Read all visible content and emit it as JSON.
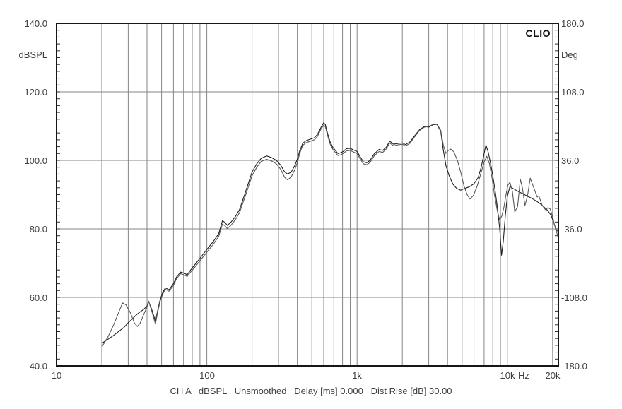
{
  "colors": {
    "grid": "#868686",
    "border": "#161616",
    "tick": "#2f2f2f",
    "trace1": "#1f1f1f",
    "trace2": "#585858",
    "label": "#3f3f3f"
  },
  "chart_data": {
    "type": "line",
    "title": "CLIO",
    "caption": "CH A   dBSPL   Unsmoothed   Delay [ms] 0.000   Dist Rise [dB] 30.00",
    "x_axis": {
      "unit": "Hz",
      "scale": "log",
      "min": 10,
      "max": 21800,
      "gridlines": [
        20,
        30,
        40,
        50,
        60,
        70,
        80,
        90,
        100,
        200,
        300,
        400,
        500,
        600,
        700,
        800,
        900,
        1000,
        2000,
        3000,
        4000,
        5000,
        6000,
        7000,
        8000,
        9000,
        10000,
        20000
      ],
      "tick_labels": [
        {
          "label": "10",
          "f": 10
        },
        {
          "label": "100",
          "f": 100
        },
        {
          "label": "1k",
          "f": 1000
        },
        {
          "label": "10k",
          "f": 10000
        },
        {
          "label": "Hz",
          "f": 12800
        },
        {
          "label": "20k",
          "f": 20000
        }
      ]
    },
    "y_axis_left": {
      "label": "dBSPL",
      "min": 40,
      "max": 140,
      "gridlines": [
        60,
        80,
        100,
        120
      ],
      "minor_tick_step": 2,
      "tick_labels": [
        {
          "label": "140.0",
          "v": 140
        },
        {
          "label": "120.0",
          "v": 120
        },
        {
          "label": "100.0",
          "v": 100
        },
        {
          "label": "80.0",
          "v": 80
        },
        {
          "label": "60.0",
          "v": 60
        },
        {
          "label": "40.0",
          "v": 40
        }
      ]
    },
    "y_axis_right": {
      "label": "Deg",
      "min": -180,
      "max": 180,
      "tick_labels": [
        {
          "label": "180.0",
          "v": 140
        },
        {
          "label": "108.0",
          "v": 120
        },
        {
          "label": "36.0",
          "v": 100
        },
        {
          "label": "-36.0",
          "v": 80
        },
        {
          "label": "-108.0",
          "v": 60
        },
        {
          "label": "-180.0",
          "v": 40
        }
      ]
    },
    "series": [
      {
        "name": "spl-trace-1",
        "points": [
          [
            20,
            46.6
          ],
          [
            22,
            47.8
          ],
          [
            24,
            48.9
          ],
          [
            26,
            50.1
          ],
          [
            28,
            51.2
          ],
          [
            30,
            52.6
          ],
          [
            32,
            53.8
          ],
          [
            34,
            54.9
          ],
          [
            36,
            55.8
          ],
          [
            38,
            56.5
          ],
          [
            40,
            57.5
          ],
          [
            41,
            58.8
          ],
          [
            43,
            56.5
          ],
          [
            45.5,
            53.0
          ],
          [
            47,
            56.0
          ],
          [
            49,
            59.5
          ],
          [
            51,
            61.5
          ],
          [
            53,
            62.8
          ],
          [
            56,
            62.2
          ],
          [
            60,
            64.0
          ],
          [
            63,
            66.0
          ],
          [
            67,
            67.4
          ],
          [
            71,
            67.0
          ],
          [
            74,
            66.6
          ],
          [
            78,
            68.0
          ],
          [
            82,
            69.2
          ],
          [
            90,
            71.4
          ],
          [
            100,
            74.0
          ],
          [
            110,
            76.2
          ],
          [
            120,
            78.6
          ],
          [
            127,
            82.4
          ],
          [
            132,
            81.9
          ],
          [
            137,
            81.0
          ],
          [
            145,
            82.0
          ],
          [
            155,
            83.6
          ],
          [
            165,
            85.6
          ],
          [
            180,
            90.5
          ],
          [
            200,
            96.6
          ],
          [
            215,
            99.0
          ],
          [
            230,
            100.6
          ],
          [
            250,
            101.3
          ],
          [
            270,
            100.8
          ],
          [
            290,
            100.0
          ],
          [
            310,
            98.6
          ],
          [
            330,
            96.6
          ],
          [
            345,
            96.0
          ],
          [
            365,
            96.6
          ],
          [
            385,
            98.5
          ],
          [
            400,
            100.3
          ],
          [
            415,
            102.8
          ],
          [
            435,
            105.0
          ],
          [
            460,
            105.8
          ],
          [
            490,
            106.2
          ],
          [
            520,
            106.6
          ],
          [
            545,
            107.6
          ],
          [
            575,
            109.6
          ],
          [
            600,
            111.0
          ],
          [
            615,
            110.4
          ],
          [
            635,
            108.0
          ],
          [
            660,
            105.5
          ],
          [
            690,
            103.8
          ],
          [
            720,
            102.8
          ],
          [
            745,
            102.0
          ],
          [
            775,
            102.2
          ],
          [
            810,
            102.6
          ],
          [
            850,
            103.4
          ],
          [
            900,
            103.5
          ],
          [
            950,
            103.0
          ],
          [
            1000,
            102.6
          ],
          [
            1050,
            101.0
          ],
          [
            1100,
            99.6
          ],
          [
            1160,
            99.3
          ],
          [
            1220,
            100.0
          ],
          [
            1300,
            101.9
          ],
          [
            1400,
            103.2
          ],
          [
            1480,
            102.9
          ],
          [
            1560,
            103.8
          ],
          [
            1650,
            105.6
          ],
          [
            1750,
            104.7
          ],
          [
            1850,
            104.9
          ],
          [
            2000,
            105.1
          ],
          [
            2100,
            104.6
          ],
          [
            2250,
            105.4
          ],
          [
            2400,
            107.0
          ],
          [
            2600,
            108.9
          ],
          [
            2800,
            109.9
          ],
          [
            3000,
            109.7
          ],
          [
            3200,
            110.4
          ],
          [
            3400,
            110.5
          ],
          [
            3600,
            108.5
          ],
          [
            3750,
            103.0
          ],
          [
            3900,
            98.5
          ],
          [
            4100,
            95.5
          ],
          [
            4350,
            93.0
          ],
          [
            4600,
            91.8
          ],
          [
            4900,
            91.3
          ],
          [
            5200,
            91.8
          ],
          [
            5600,
            92.3
          ],
          [
            6000,
            93.2
          ],
          [
            6400,
            95.0
          ],
          [
            6700,
            98.0
          ],
          [
            7000,
            102.0
          ],
          [
            7200,
            104.5
          ],
          [
            7450,
            102.5
          ],
          [
            7700,
            99.5
          ],
          [
            8000,
            95.5
          ],
          [
            8300,
            91.0
          ],
          [
            8600,
            86.0
          ],
          [
            8900,
            80.0
          ],
          [
            9150,
            72.3
          ],
          [
            9400,
            76.5
          ],
          [
            9700,
            84.0
          ],
          [
            10000,
            89.5
          ],
          [
            10400,
            92.3
          ],
          [
            10900,
            91.8
          ],
          [
            11500,
            91.2
          ],
          [
            12200,
            90.6
          ],
          [
            13000,
            90.0
          ],
          [
            13800,
            89.4
          ],
          [
            14700,
            88.8
          ],
          [
            15600,
            88.1
          ],
          [
            16600,
            87.3
          ],
          [
            17600,
            86.3
          ],
          [
            18600,
            85.3
          ],
          [
            19500,
            84.0
          ],
          [
            20300,
            82.0
          ],
          [
            21200,
            79.5
          ],
          [
            21800,
            79.3
          ]
        ]
      },
      {
        "name": "spl-trace-2",
        "points": [
          [
            20,
            45.5
          ],
          [
            22,
            48.5
          ],
          [
            24,
            52.0
          ],
          [
            26,
            55.8
          ],
          [
            27.5,
            58.4
          ],
          [
            29,
            57.8
          ],
          [
            31,
            55.5
          ],
          [
            33,
            52.5
          ],
          [
            34.5,
            51.5
          ],
          [
            36,
            52.5
          ],
          [
            38,
            55.0
          ],
          [
            40,
            57.2
          ],
          [
            41,
            58.9
          ],
          [
            43,
            56.0
          ],
          [
            45.5,
            52.2
          ],
          [
            47,
            55.5
          ],
          [
            49,
            59.0
          ],
          [
            51,
            61.0
          ],
          [
            53,
            62.4
          ],
          [
            56,
            61.8
          ],
          [
            60,
            63.5
          ],
          [
            63,
            65.5
          ],
          [
            67,
            66.9
          ],
          [
            71,
            66.5
          ],
          [
            74,
            66.1
          ],
          [
            78,
            67.4
          ],
          [
            82,
            68.5
          ],
          [
            90,
            70.7
          ],
          [
            100,
            73.2
          ],
          [
            110,
            75.4
          ],
          [
            120,
            77.8
          ],
          [
            127,
            81.4
          ],
          [
            132,
            80.9
          ],
          [
            137,
            80.1
          ],
          [
            145,
            81.1
          ],
          [
            155,
            82.7
          ],
          [
            165,
            84.7
          ],
          [
            180,
            89.5
          ],
          [
            200,
            95.5
          ],
          [
            215,
            98.0
          ],
          [
            230,
            99.7
          ],
          [
            250,
            100.3
          ],
          [
            270,
            99.8
          ],
          [
            290,
            99.0
          ],
          [
            310,
            97.4
          ],
          [
            330,
            95.0
          ],
          [
            345,
            94.3
          ],
          [
            365,
            95.2
          ],
          [
            385,
            97.3
          ],
          [
            400,
            99.3
          ],
          [
            415,
            102.0
          ],
          [
            435,
            104.4
          ],
          [
            460,
            105.2
          ],
          [
            490,
            105.6
          ],
          [
            520,
            106.0
          ],
          [
            545,
            107.0
          ],
          [
            575,
            109.1
          ],
          [
            600,
            110.3
          ],
          [
            615,
            109.8
          ],
          [
            635,
            107.4
          ],
          [
            660,
            104.9
          ],
          [
            690,
            103.2
          ],
          [
            720,
            102.2
          ],
          [
            745,
            101.4
          ],
          [
            775,
            101.6
          ],
          [
            810,
            102.0
          ],
          [
            850,
            102.8
          ],
          [
            900,
            102.9
          ],
          [
            950,
            102.4
          ],
          [
            1000,
            102.0
          ],
          [
            1050,
            100.4
          ],
          [
            1100,
            99.0
          ],
          [
            1160,
            98.7
          ],
          [
            1220,
            99.4
          ],
          [
            1300,
            101.3
          ],
          [
            1400,
            102.6
          ],
          [
            1480,
            102.3
          ],
          [
            1560,
            103.3
          ],
          [
            1650,
            105.1
          ],
          [
            1750,
            104.2
          ],
          [
            1850,
            104.5
          ],
          [
            2000,
            104.7
          ],
          [
            2100,
            104.2
          ],
          [
            2250,
            105.0
          ],
          [
            2400,
            106.7
          ],
          [
            2600,
            108.7
          ],
          [
            2800,
            109.7
          ],
          [
            3000,
            109.9
          ],
          [
            3200,
            110.5
          ],
          [
            3400,
            110.6
          ],
          [
            3600,
            108.8
          ],
          [
            3750,
            104.5
          ],
          [
            3900,
            102.0
          ],
          [
            4050,
            102.9
          ],
          [
            4200,
            103.3
          ],
          [
            4400,
            102.5
          ],
          [
            4650,
            100.0
          ],
          [
            4900,
            96.5
          ],
          [
            5150,
            92.5
          ],
          [
            5400,
            90.0
          ],
          [
            5650,
            88.7
          ],
          [
            5950,
            89.8
          ],
          [
            6300,
            92.5
          ],
          [
            6700,
            96.5
          ],
          [
            7000,
            99.5
          ],
          [
            7300,
            101.2
          ],
          [
            7600,
            99.0
          ],
          [
            7900,
            95.0
          ],
          [
            8200,
            90.0
          ],
          [
            8600,
            85.0
          ],
          [
            8900,
            82.6
          ],
          [
            9200,
            83.8
          ],
          [
            9500,
            86.5
          ],
          [
            9800,
            90.0
          ],
          [
            10100,
            92.8
          ],
          [
            10400,
            93.6
          ],
          [
            10800,
            91.0
          ],
          [
            11200,
            85.0
          ],
          [
            11700,
            86.5
          ],
          [
            12200,
            94.5
          ],
          [
            12600,
            92.0
          ],
          [
            13100,
            86.8
          ],
          [
            13600,
            89.5
          ],
          [
            14200,
            94.8
          ],
          [
            15000,
            92.0
          ],
          [
            15800,
            89.3
          ],
          [
            16200,
            89.7
          ],
          [
            17000,
            87.0
          ],
          [
            17900,
            85.6
          ],
          [
            18700,
            86.2
          ],
          [
            19300,
            85.8
          ],
          [
            20000,
            83.5
          ],
          [
            20800,
            80.5
          ],
          [
            21800,
            77.5
          ]
        ]
      }
    ]
  }
}
